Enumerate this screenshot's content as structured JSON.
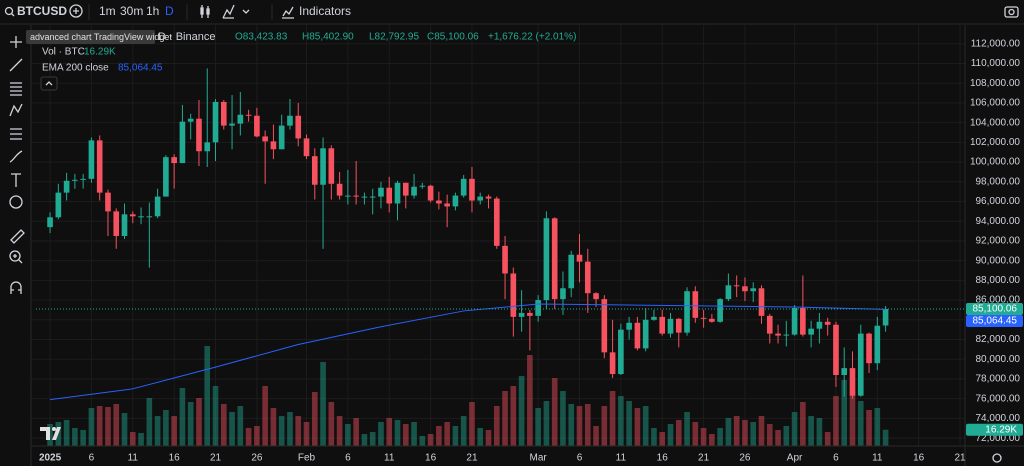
{
  "toolbar": {
    "symbol": "BTCUSD",
    "intervals": [
      "1m",
      "30m",
      "1h",
      "D"
    ],
    "indicators": "Indicators"
  },
  "tooltip": "advanced chart TradingView widget",
  "legend": {
    "title": "D · Binance",
    "open": "O83,423.83",
    "high": "H85,402.90",
    "low": "L82,792.95",
    "close": "C85,100.06",
    "change": "+1,676.22 (+2.01%)",
    "volume_name": "Vol · BTC",
    "volume_value": "16.29K",
    "ema_name": "EMA 200 close",
    "ema_value": "85,064.45"
  },
  "chart_data": {
    "type": "candlestick",
    "up_color": "#22ab94",
    "down_color": "#f7525f",
    "x": [
      0,
      1,
      2,
      3,
      4,
      5,
      6,
      7,
      8,
      9,
      10,
      11,
      12,
      13,
      14,
      15,
      16,
      17,
      18,
      19,
      20,
      21,
      22,
      23,
      24,
      25,
      26,
      27,
      28,
      29,
      30,
      31,
      32,
      33,
      34,
      35,
      36,
      37,
      38,
      39,
      40,
      41,
      42,
      43,
      44,
      45,
      46,
      47,
      48,
      49,
      50,
      51,
      52,
      53,
      54,
      55,
      56,
      57,
      58,
      59,
      60,
      61,
      62,
      63,
      64,
      65,
      66,
      67,
      68,
      69,
      70,
      71,
      72,
      73,
      74,
      75,
      76,
      77,
      78,
      79,
      80,
      81,
      82,
      83,
      84,
      85,
      86,
      87,
      88,
      89,
      90,
      91,
      92,
      93,
      94,
      95,
      96,
      97,
      98,
      99,
      100,
      101
    ],
    "candles": [
      [
        93400,
        94900,
        92800,
        94400
      ],
      [
        94400,
        97800,
        94200,
        96900
      ],
      [
        96900,
        98900,
        96100,
        98100
      ],
      [
        98100,
        98800,
        97300,
        98200
      ],
      [
        98200,
        98800,
        97300,
        98300
      ],
      [
        98300,
        102500,
        97900,
        102200
      ],
      [
        102200,
        102700,
        96100,
        96900
      ],
      [
        96900,
        97200,
        92500,
        95000
      ],
      [
        95000,
        95300,
        91200,
        92500
      ],
      [
        92500,
        95800,
        92200,
        94700
      ],
      [
        94700,
        95000,
        93800,
        94500
      ],
      [
        94500,
        95400,
        93700,
        94500
      ],
      [
        94500,
        95900,
        89300,
        94500
      ],
      [
        94500,
        97300,
        94300,
        96500
      ],
      [
        96500,
        100700,
        96500,
        100500
      ],
      [
        100500,
        100800,
        97300,
        99900
      ],
      [
        99900,
        105800,
        99900,
        104100
      ],
      [
        104100,
        104900,
        102300,
        104400
      ],
      [
        104400,
        106300,
        99600,
        101100
      ],
      [
        101100,
        109500,
        99500,
        102000
      ],
      [
        102000,
        106400,
        100100,
        106100
      ],
      [
        106100,
        106300,
        103300,
        103700
      ],
      [
        103700,
        106800,
        101300,
        103900
      ],
      [
        103900,
        107100,
        102700,
        104800
      ],
      [
        104800,
        105300,
        104100,
        104700
      ],
      [
        104700,
        105500,
        102500,
        102600
      ],
      [
        102600,
        103200,
        97800,
        102100
      ],
      [
        102100,
        103800,
        100300,
        101300
      ],
      [
        101300,
        104800,
        101300,
        103700
      ],
      [
        103700,
        106400,
        103300,
        104700
      ],
      [
        104700,
        106000,
        101600,
        102400
      ],
      [
        102400,
        102800,
        100300,
        100600
      ],
      [
        100600,
        101400,
        96200,
        97700
      ],
      [
        97700,
        102500,
        91200,
        101400
      ],
      [
        101400,
        101700,
        96200,
        97800
      ],
      [
        97800,
        99000,
        96200,
        96600
      ],
      [
        96600,
        99200,
        95700,
        96600
      ],
      [
        96600,
        100100,
        95700,
        96500
      ],
      [
        96500,
        96900,
        95700,
        96500
      ],
      [
        96500,
        97300,
        94700,
        96500
      ],
      [
        96500,
        98000,
        95300,
        97400
      ],
      [
        97400,
        98500,
        94900,
        95800
      ],
      [
        95800,
        98100,
        94100,
        97900
      ],
      [
        97900,
        97900,
        95300,
        96600
      ],
      [
        96600,
        98800,
        96300,
        97500
      ],
      [
        97500,
        97900,
        97300,
        97600
      ],
      [
        97600,
        97700,
        95900,
        96100
      ],
      [
        96100,
        97000,
        95200,
        95800
      ],
      [
        95800,
        96700,
        93400,
        95500
      ],
      [
        95500,
        96900,
        95100,
        96600
      ],
      [
        96600,
        98700,
        96400,
        98300
      ],
      [
        98300,
        99500,
        94900,
        96100
      ],
      [
        96100,
        96900,
        95700,
        96500
      ],
      [
        96500,
        96700,
        95300,
        96300
      ],
      [
        96300,
        96500,
        91200,
        91500
      ],
      [
        91500,
        92500,
        86100,
        88700
      ],
      [
        88700,
        89300,
        82300,
        84300
      ],
      [
        84300,
        87000,
        82800,
        84700
      ],
      [
        84700,
        85000,
        80900,
        84400
      ],
      [
        84400,
        86500,
        83800,
        86000
      ],
      [
        86000,
        95000,
        85100,
        94300
      ],
      [
        94300,
        94400,
        85100,
        86100
      ],
      [
        86100,
        88900,
        84500,
        87200
      ],
      [
        87200,
        91000,
        86300,
        90600
      ],
      [
        90600,
        92700,
        87800,
        89900
      ],
      [
        89900,
        91200,
        84700,
        86700
      ],
      [
        86700,
        86800,
        85300,
        86100
      ],
      [
        86100,
        86500,
        80100,
        80700
      ],
      [
        80700,
        84000,
        78100,
        78500
      ],
      [
        78500,
        83600,
        78400,
        83000
      ],
      [
        83000,
        84300,
        82000,
        83700
      ],
      [
        83700,
        84300,
        80900,
        81100
      ],
      [
        81100,
        85200,
        80800,
        84000
      ],
      [
        84000,
        85000,
        83900,
        84300
      ],
      [
        84300,
        85000,
        82400,
        82600
      ],
      [
        82600,
        84700,
        82200,
        84100
      ],
      [
        84100,
        84200,
        81200,
        82700
      ],
      [
        82700,
        87300,
        82400,
        86900
      ],
      [
        86900,
        87400,
        83700,
        84200
      ],
      [
        84200,
        85000,
        83200,
        84100
      ],
      [
        84100,
        84600,
        83700,
        83800
      ],
      [
        83800,
        86200,
        83700,
        86100
      ],
      [
        86100,
        88700,
        85900,
        87500
      ],
      [
        87500,
        88500,
        86300,
        87400
      ],
      [
        87400,
        88300,
        85900,
        86900
      ],
      [
        86900,
        87800,
        85800,
        87200
      ],
      [
        87200,
        87500,
        83600,
        84400
      ],
      [
        84400,
        84600,
        81600,
        82600
      ],
      [
        82600,
        83500,
        81600,
        82400
      ],
      [
        82400,
        83900,
        81300,
        82500
      ],
      [
        82500,
        85500,
        82400,
        85200
      ],
      [
        85200,
        88500,
        82300,
        82500
      ],
      [
        82500,
        83900,
        81200,
        83100
      ],
      [
        83100,
        84700,
        81600,
        83800
      ],
      [
        83800,
        84200,
        82400,
        83500
      ],
      [
        83500,
        83800,
        77200,
        78400
      ],
      [
        78400,
        81200,
        76200,
        79100
      ],
      [
        79100,
        80800,
        76000,
        76300
      ],
      [
        76300,
        83500,
        76200,
        82600
      ],
      [
        82600,
        82700,
        78600,
        79600
      ],
      [
        79600,
        84300,
        78900,
        83400
      ],
      [
        83423.83,
        85402.9,
        82792.95,
        85100.06
      ]
    ],
    "volume": [
      22000,
      24000,
      26000,
      18000,
      16000,
      38000,
      40000,
      39000,
      42000,
      33000,
      14000,
      13000,
      48000,
      30000,
      36000,
      30000,
      58000,
      44000,
      48000,
      100000,
      60000,
      42000,
      34000,
      40000,
      18000,
      20000,
      60000,
      38000,
      30000,
      34000,
      30000,
      24000,
      54000,
      84000,
      44000,
      30000,
      22000,
      28000,
      12000,
      14000,
      24000,
      28000,
      26000,
      22000,
      24000,
      10000,
      12000,
      20000,
      24000,
      20000,
      30000,
      44000,
      18000,
      16000,
      40000,
      55000,
      60000,
      70000,
      91000,
      38000,
      45000,
      68000,
      55000,
      42000,
      40000,
      42000,
      20000,
      40000,
      55000,
      50000,
      45000,
      38000,
      40000,
      18000,
      14000,
      22000,
      26000,
      34000,
      24000,
      18000,
      12000,
      18000,
      28000,
      30000,
      26000,
      24000,
      30000,
      22000,
      16000,
      20000,
      34000,
      44000,
      30000,
      28000,
      14000,
      50000,
      66000,
      55000,
      45000,
      36000,
      38000,
      16290
    ],
    "ema": {
      "color": "#2962ff",
      "x": [
        0,
        10,
        20,
        30,
        40,
        50,
        59,
        70,
        80,
        90,
        101
      ],
      "values": [
        75900,
        77000,
        79200,
        81500,
        83300,
        84900,
        85600,
        85500,
        85400,
        85300,
        85064.45
      ]
    },
    "last_price_label": "85,100.06",
    "xlim": [
      -1.7,
      110.6
    ],
    "xticks": [
      {
        "value": 0,
        "label": "2025"
      },
      {
        "value": 5,
        "label": "6"
      },
      {
        "value": 10,
        "label": "11"
      },
      {
        "value": 15,
        "label": "16"
      },
      {
        "value": 20,
        "label": "21"
      },
      {
        "value": 25,
        "label": "26"
      },
      {
        "value": 31,
        "label": "Feb"
      },
      {
        "value": 36,
        "label": "6"
      },
      {
        "value": 41,
        "label": "11"
      },
      {
        "value": 46,
        "label": "16"
      },
      {
        "value": 51,
        "label": "21"
      },
      {
        "value": 59,
        "label": "Mar"
      },
      {
        "value": 64,
        "label": "6"
      },
      {
        "value": 69,
        "label": "11"
      },
      {
        "value": 74,
        "label": "16"
      },
      {
        "value": 79,
        "label": "21"
      },
      {
        "value": 84,
        "label": "26"
      },
      {
        "value": 90,
        "label": "Apr"
      },
      {
        "value": 95,
        "label": "6"
      },
      {
        "value": 100,
        "label": "11"
      },
      {
        "value": 105,
        "label": "16"
      },
      {
        "value": 110,
        "label": "21"
      }
    ],
    "ylim": [
      71200,
      113600
    ],
    "yticks": [
      {
        "value": 72000,
        "label": "72,000.00"
      },
      {
        "value": 74000,
        "label": "74,000.00"
      },
      {
        "value": 76000,
        "label": "76,000.00"
      },
      {
        "value": 78000,
        "label": "78,000.00"
      },
      {
        "value": 80000,
        "label": "80,000.00"
      },
      {
        "value": 82000,
        "label": "82,000.00"
      },
      {
        "value": 84000,
        "label": "84,000.00"
      },
      {
        "value": 86000,
        "label": "86,000.00"
      },
      {
        "value": 88000,
        "label": "88,000.00"
      },
      {
        "value": 90000,
        "label": "90,000.00"
      },
      {
        "value": 92000,
        "label": "92,000.00"
      },
      {
        "value": 94000,
        "label": "94,000.00"
      },
      {
        "value": 96000,
        "label": "96,000.00"
      },
      {
        "value": 98000,
        "label": "98,000.00"
      },
      {
        "value": 100000,
        "label": "100,000.00"
      },
      {
        "value": 102000,
        "label": "102,000.00"
      },
      {
        "value": 104000,
        "label": "104,000.00"
      },
      {
        "value": 106000,
        "label": "106,000.00"
      },
      {
        "value": 108000,
        "label": "108,000.00"
      },
      {
        "value": 110000,
        "label": "110,000.00"
      },
      {
        "value": 112000,
        "label": "112,000.00"
      }
    ],
    "grid": true
  }
}
